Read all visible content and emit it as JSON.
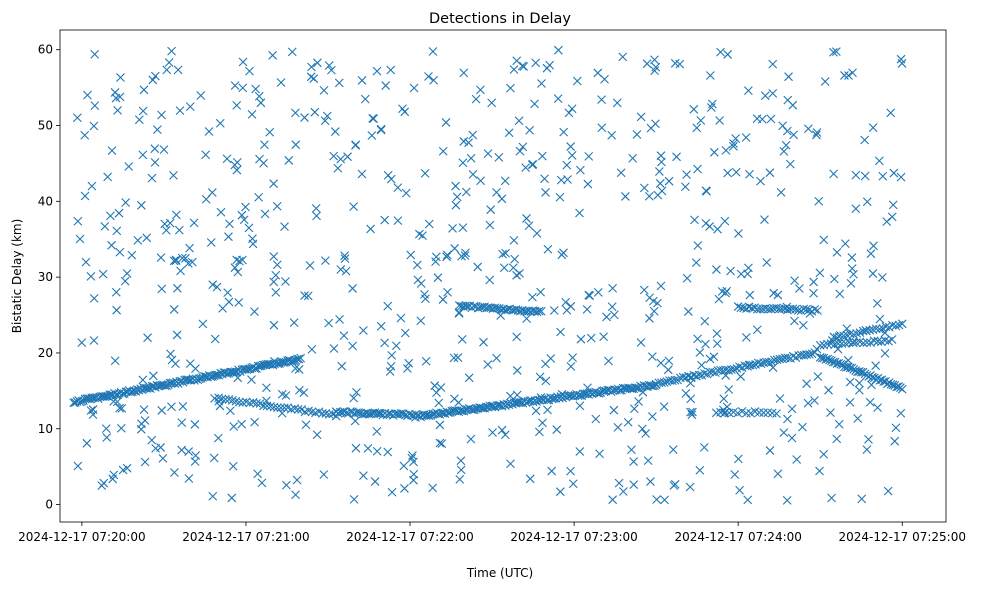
{
  "chart_data": {
    "type": "scatter",
    "title": "Detections in Delay",
    "xlabel": "Time (UTC)",
    "ylabel": "Bistatic Delay (km)",
    "x_axis_kind": "datetime",
    "xlim": [
      "2024-12-17 07:19:52",
      "2024-12-17 07:25:16"
    ],
    "ylim": [
      -2.3,
      62.6
    ],
    "marker": "x",
    "marker_color": "#1f77b4",
    "x_ticks": [
      "2024-12-17 07:20:00",
      "2024-12-17 07:21:00",
      "2024-12-17 07:22:00",
      "2024-12-17 07:23:00",
      "2024-12-17 07:24:00",
      "2024-12-17 07:25:00"
    ],
    "y_ticks": [
      0,
      10,
      20,
      30,
      40,
      50,
      60
    ],
    "grid": false,
    "legend": false,
    "points_tracks": [
      {
        "t_start": "2024-12-17 07:19:57",
        "t_end": "2024-12-17 07:21:20",
        "y_start": 13.5,
        "y_end": 19.2,
        "count": 140
      },
      {
        "t_start": "2024-12-17 07:20:50",
        "t_end": "2024-12-17 07:21:33",
        "y_start": 14.0,
        "y_end": 11.8,
        "count": 35
      },
      {
        "t_start": "2024-12-17 07:21:33",
        "t_end": "2024-12-17 07:22:02",
        "y_start": 12.2,
        "y_end": 11.8,
        "count": 40
      },
      {
        "t_start": "2024-12-17 07:22:02",
        "t_end": "2024-12-17 07:23:30",
        "y_start": 11.6,
        "y_end": 15.8,
        "count": 140
      },
      {
        "t_start": "2024-12-17 07:22:18",
        "t_end": "2024-12-17 07:22:48",
        "y_start": 26.2,
        "y_end": 25.4,
        "count": 40
      },
      {
        "t_start": "2024-12-17 07:23:30",
        "t_end": "2024-12-17 07:24:28",
        "y_start": 16.0,
        "y_end": 20.0,
        "count": 60
      },
      {
        "t_start": "2024-12-17 07:23:52",
        "t_end": "2024-12-17 07:24:14",
        "y_start": 12.2,
        "y_end": 12.1,
        "count": 15
      },
      {
        "t_start": "2024-12-17 07:24:00",
        "t_end": "2024-12-17 07:24:29",
        "y_start": 26.0,
        "y_end": 25.6,
        "count": 30
      },
      {
        "t_start": "2024-12-17 07:24:30",
        "t_end": "2024-12-17 07:24:55",
        "y_start": 21.0,
        "y_end": 21.6,
        "count": 20
      },
      {
        "t_start": "2024-12-17 07:24:30",
        "t_end": "2024-12-17 07:25:00",
        "y_start": 19.5,
        "y_end": 15.3,
        "count": 45
      },
      {
        "t_start": "2024-12-17 07:24:35",
        "t_end": "2024-12-17 07:25:00",
        "y_start": 22.0,
        "y_end": 23.8,
        "count": 22
      }
    ],
    "noise_clutter": {
      "t_start": "2024-12-17 07:19:58",
      "t_end": "2024-12-17 07:25:00",
      "y_range": [
        0.5,
        60
      ],
      "count": 760
    }
  }
}
